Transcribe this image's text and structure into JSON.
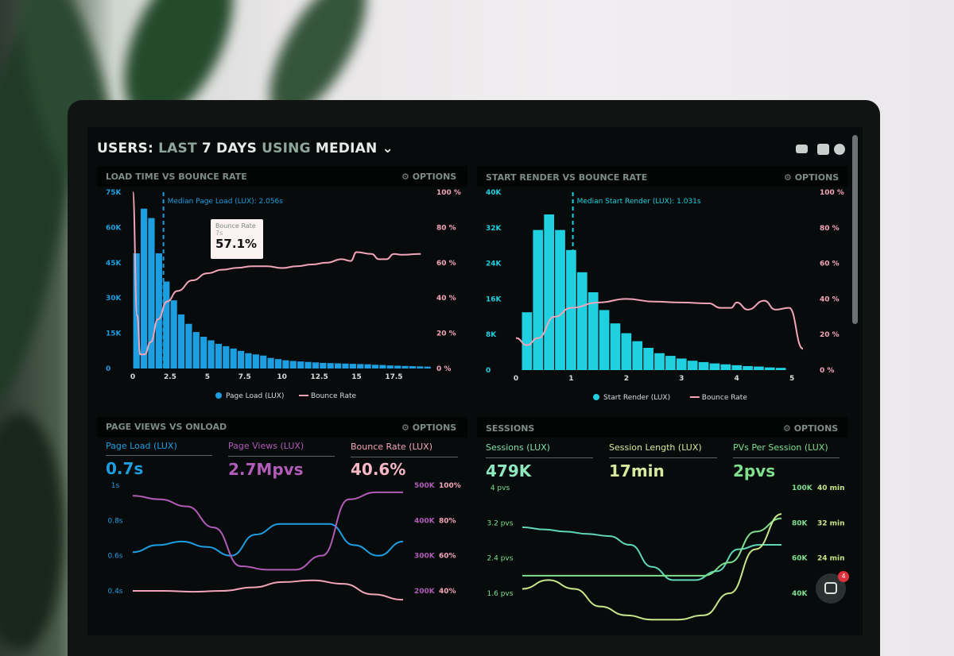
{
  "header": {
    "title_parts": [
      "USERS:",
      "LAST",
      "7 DAYS",
      "USING",
      "MEDIAN"
    ],
    "icons": [
      "monitor-icon",
      "share-icon",
      "help-icon"
    ]
  },
  "colors": {
    "blue": "#1d9ee0",
    "cyan": "#1fd0e0",
    "pink": "#f3a5b8",
    "purple": "#b05cb8",
    "teal": "#5fd6b8",
    "lime": "#c8e68a",
    "green": "#7ee08e"
  },
  "panels": [
    {
      "title": "LOAD TIME VS BOUNCE RATE",
      "options": "OPTIONS"
    },
    {
      "title": "START RENDER VS BOUNCE RATE",
      "options": "OPTIONS"
    },
    {
      "title": "PAGE VIEWS VS ONLOAD",
      "options": "OPTIONS"
    },
    {
      "title": "SESSIONS",
      "options": "OPTIONS"
    }
  ],
  "tooltip": {
    "label": "Bounce Rate",
    "x": "7s",
    "value": "57.1%"
  },
  "kpis_pageviews": [
    {
      "label": "Page Load (LUX)",
      "value": "0.7s"
    },
    {
      "label": "Page Views (LUX)",
      "value": "2.7Mpvs"
    },
    {
      "label": "Bounce Rate (LUX)",
      "value": "40.6%"
    }
  ],
  "kpis_sessions": [
    {
      "label": "Sessions (LUX)",
      "value": "479K"
    },
    {
      "label": "Session Length (LUX)",
      "value": "17min"
    },
    {
      "label": "PVs Per Session (LUX)",
      "value": "2pvs"
    }
  ],
  "chat": {
    "badge": "4"
  },
  "chart_data": [
    {
      "type": "bar",
      "title": "LOAD TIME VS BOUNCE RATE",
      "annotation": "Median Page Load (LUX): 2.056s",
      "median": 2.056,
      "x_ticks": [
        "0",
        "2.5",
        "5",
        "7.5",
        "10",
        "12.5",
        "15",
        "17.5"
      ],
      "y_ticks": [
        "0",
        "15K",
        "30K",
        "45K",
        "60K",
        "75K"
      ],
      "y2_ticks": [
        "0 %",
        "20 %",
        "40 %",
        "60 %",
        "80 %",
        "100 %"
      ],
      "ylim": [
        0,
        75000
      ],
      "y2lim": [
        0,
        100
      ],
      "xlim": [
        0,
        19.5
      ],
      "bin_width": 0.5,
      "series": [
        {
          "name": "Page Load (LUX)",
          "type": "bar",
          "values": [
            49000,
            68000,
            64000,
            49000,
            37000,
            29000,
            23000,
            19000,
            15500,
            13500,
            12000,
            10500,
            9500,
            8500,
            7500,
            6500,
            6000,
            5500,
            4500,
            4000,
            3500,
            3200,
            3000,
            2800,
            2600,
            2400,
            2300,
            2200,
            2100,
            2000,
            1900,
            1800,
            1600,
            1500,
            1300,
            1200,
            1100,
            1000,
            900,
            800
          ]
        },
        {
          "name": "Bounce Rate",
          "type": "line",
          "points": [
            [
              0,
              100
            ],
            [
              0.3,
              30
            ],
            [
              0.5,
              8
            ],
            [
              0.8,
              8
            ],
            [
              1.2,
              15
            ],
            [
              1.7,
              28
            ],
            [
              2.3,
              38
            ],
            [
              3,
              44
            ],
            [
              4,
              50
            ],
            [
              5,
              54
            ],
            [
              6,
              56
            ],
            [
              7,
              57.1
            ],
            [
              8,
              58
            ],
            [
              9,
              58
            ],
            [
              10,
              57
            ],
            [
              11,
              58
            ],
            [
              12,
              59
            ],
            [
              13,
              60
            ],
            [
              14,
              62
            ],
            [
              14.6,
              61
            ],
            [
              15,
              66
            ],
            [
              16,
              65
            ],
            [
              16.5,
              62
            ],
            [
              17,
              62
            ],
            [
              17.5,
              65
            ],
            [
              18,
              64.5
            ],
            [
              19.3,
              65
            ]
          ]
        }
      ]
    },
    {
      "type": "bar",
      "title": "START RENDER VS BOUNCE RATE",
      "annotation": "Median Start Render (LUX): 1.031s",
      "median": 1.031,
      "x_ticks": [
        "0",
        "1",
        "2",
        "3",
        "4",
        "5"
      ],
      "y_ticks": [
        "0",
        "8K",
        "16K",
        "24K",
        "32K",
        "40K"
      ],
      "y2_ticks": [
        "0 %",
        "20 %",
        "40 %",
        "60 %",
        "80 %",
        "100 %"
      ],
      "ylim": [
        0,
        40000
      ],
      "y2lim": [
        0,
        100
      ],
      "xlim": [
        0,
        5.2
      ],
      "bin_width": 0.2,
      "series": [
        {
          "name": "Start Render (LUX)",
          "type": "bar",
          "values": [
            13000,
            31500,
            35000,
            31500,
            27000,
            22000,
            17500,
            13500,
            10500,
            8300,
            6500,
            5000,
            3800,
            3200,
            2600,
            2100,
            1800,
            1500,
            1300,
            1100,
            900,
            800,
            600,
            500
          ]
        },
        {
          "name": "Bounce Rate",
          "type": "line",
          "points": [
            [
              0,
              18
            ],
            [
              0.2,
              14
            ],
            [
              0.4,
              18
            ],
            [
              0.7,
              30
            ],
            [
              1,
              35
            ],
            [
              1.5,
              38
            ],
            [
              2,
              40
            ],
            [
              2.5,
              38.5
            ],
            [
              3,
              38
            ],
            [
              3.5,
              37.5
            ],
            [
              3.7,
              35
            ],
            [
              3.9,
              35
            ],
            [
              4,
              38
            ],
            [
              4.2,
              34
            ],
            [
              4.5,
              39
            ],
            [
              4.7,
              34
            ],
            [
              4.95,
              35
            ],
            [
              5.2,
              12
            ]
          ]
        }
      ]
    },
    {
      "type": "line",
      "title": "PAGE VIEWS VS ONLOAD",
      "y_ticks": [
        "1s",
        "0.8s",
        "0.6s",
        "0.4s"
      ],
      "y2_ticks": [
        "500K",
        "400K",
        "300K",
        "200K"
      ],
      "y3_ticks": [
        "100%",
        "80%",
        "60%",
        "40%"
      ],
      "series": [
        {
          "name": "Page Load (LUX)",
          "values": [
            0.62,
            0.66,
            0.68,
            0.65,
            0.6,
            0.72,
            0.78,
            0.78,
            0.78,
            0.66,
            0.6,
            0.68
          ]
        },
        {
          "name": "Page Views (LUX)",
          "values": [
            470,
            460,
            440,
            380,
            270,
            260,
            260,
            300,
            460,
            480,
            480
          ]
        },
        {
          "name": "Bounce Rate (LUX)",
          "values": [
            40,
            40,
            39.5,
            40,
            42,
            45,
            46,
            44,
            38,
            35
          ]
        }
      ]
    },
    {
      "type": "line",
      "title": "SESSIONS",
      "y_ticks": [
        "4 pvs",
        "3.2 pvs",
        "2.4 pvs",
        "1.6 pvs"
      ],
      "y2_ticks": [
        "100K",
        "80K",
        "60K",
        "40K"
      ],
      "y3_ticks": [
        "40 min",
        "32 min",
        "24 min"
      ],
      "series": [
        {
          "name": "PVs Per Session (LUX)",
          "values": [
            3.1,
            3.05,
            3.0,
            2.95,
            2.9,
            2.7,
            2.2,
            1.9,
            1.9,
            2.1,
            2.6,
            2.7,
            2.7
          ]
        },
        {
          "name": "Session Length (LUX)",
          "values": [
            2.0,
            2.0,
            2.0,
            2.0,
            2.0,
            2.0,
            2.0,
            2.0,
            2.3,
            3.0,
            3.3
          ]
        },
        {
          "name": "Sessions (LUX)",
          "values": [
            1.7,
            1.9,
            1.7,
            1.3,
            1.1,
            1.0,
            1.0,
            1.1,
            1.6,
            2.6,
            3.4
          ]
        }
      ]
    }
  ]
}
